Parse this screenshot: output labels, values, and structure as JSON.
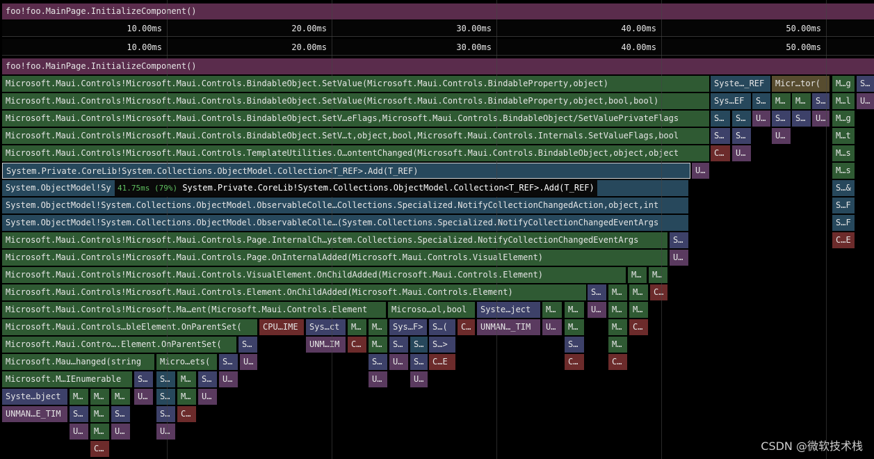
{
  "header": {
    "title": "foo!foo.MainPage.InitializeComponent()"
  },
  "ruler_top": [
    "10.00ms",
    "20.00ms",
    "30.00ms",
    "40.00ms",
    "50.00ms"
  ],
  "ruler": [
    "10.00ms",
    "20.00ms",
    "30.00ms",
    "40.00ms",
    "50.00ms"
  ],
  "frames": [
    [
      "foo!foo.MainPage.InitializeComponent()"
    ],
    [
      "Microsoft.Maui.Controls!Microsoft.Maui.Controls.BindableObject.SetValue(Microsoft.Maui.Controls.BindableProperty,object)",
      "Syste…_REF",
      "Micr…tor(",
      "M…g",
      "S…"
    ],
    [
      "Microsoft.Maui.Controls!Microsoft.Maui.Controls.BindableObject.SetValue(Microsoft.Maui.Controls.BindableProperty,object,bool,bool)",
      "Sys…EF",
      "S…",
      "M…",
      "M…",
      "S…",
      "M…l",
      "U…"
    ],
    [
      "Microsoft.Maui.Controls!Microsoft.Maui.Controls.BindableObject.SetV…eFlags,Microsoft.Maui.Controls.BindableObject/SetValuePrivateFlags",
      "S…",
      "S…",
      "U…",
      "S…",
      "S…",
      "U…",
      "M…g"
    ],
    [
      "Microsoft.Maui.Controls!Microsoft.Maui.Controls.BindableObject.SetV…t,object,bool,Microsoft.Maui.Controls.Internals.SetValueFlags,bool",
      "S…",
      "S…",
      "U…",
      "M…t"
    ],
    [
      "Microsoft.Maui.Controls!Microsoft.Maui.Controls.TemplateUtilities.O…ontentChanged(Microsoft.Maui.Controls.BindableObject,object,object",
      "C…",
      "U…",
      "M…s"
    ],
    [
      "System.Private.CoreLib!System.Collections.ObjectModel.Collection<T_REF>.Add(T_REF)",
      "U…",
      "M…s"
    ],
    [
      "System.ObjectModel!Sy",
      "S…&"
    ],
    [
      "System.ObjectModel!System.Collections.ObjectModel.ObservableColle…Collections.Specialized.NotifyCollectionChangedAction,object,int",
      "S…F"
    ],
    [
      "System.ObjectModel!System.Collections.ObjectModel.ObservableColle…(System.Collections.Specialized.NotifyCollectionChangedEventArgs",
      "S…F"
    ],
    [
      "Microsoft.Maui.Controls!Microsoft.Maui.Controls.Page.InternalCh…ystem.Collections.Specialized.NotifyCollectionChangedEventArgs",
      "S…",
      "C…E"
    ],
    [
      "Microsoft.Maui.Controls!Microsoft.Maui.Controls.Page.OnInternalAdded(Microsoft.Maui.Controls.VisualElement)",
      "U…"
    ],
    [
      "Microsoft.Maui.Controls!Microsoft.Maui.Controls.VisualElement.OnChildAdded(Microsoft.Maui.Controls.Element)",
      "M…",
      "M…"
    ],
    [
      "Microsoft.Maui.Controls!Microsoft.Maui.Controls.Element.OnChildAdded(Microsoft.Maui.Controls.Element)",
      "S…",
      "M…",
      "M…",
      "C…"
    ],
    [
      "Microsoft.Maui.Controls!Microsoft.Ma…ent(Microsoft.Maui.Controls.Element",
      "Microso…ol,bool",
      "Syste…ject",
      "M…",
      "M…",
      "U…",
      "M…",
      "M…"
    ],
    [
      "Microsoft.Maui.Controls…bleElement.OnParentSet(",
      "CPU…IME",
      "Sys…ct",
      "M…",
      "M…",
      "Sys…F>",
      "S…(",
      "C…",
      "UNMAN…_TIM",
      "U…",
      "M…",
      "M…",
      "C…"
    ],
    [
      "Microsoft.Maui.Contro….Element.OnParentSet(",
      "S…",
      "UNM…IM",
      "C…",
      "M…",
      "S…",
      "S…",
      "S…>",
      "S…",
      "M…"
    ],
    [
      "Microsoft.Mau…hanged(string",
      "Micro…ets(",
      "S…",
      "U…",
      "S…",
      "U…",
      "S…",
      "C…E",
      "C…",
      "C…"
    ],
    [
      "Microsoft.M…IEnumerable",
      "S…",
      "S…",
      "M…",
      "S…",
      "U…",
      "U…",
      "U…"
    ],
    [
      "Syste…bject",
      "M…",
      "M…",
      "M…",
      "U…",
      "S…",
      "M…",
      "U…"
    ],
    [
      "UNMAN…E_TIM",
      "S…",
      "M…",
      "S…",
      "S…",
      "C…"
    ],
    [
      "U…",
      "M…",
      "U…",
      "U…"
    ],
    [
      "C…"
    ]
  ],
  "tooltip": {
    "value": "41.75ms (79%)",
    "label": "System.Private.CoreLib!System.Collections.ObjectModel.Collection<T_REF>.Add(T_REF)"
  },
  "watermark": "CSDN @微软技术栈"
}
